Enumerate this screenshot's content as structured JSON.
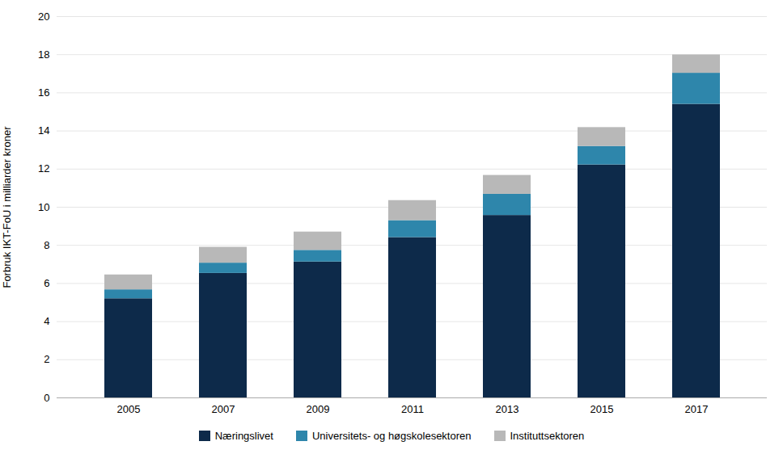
{
  "chart_data": {
    "type": "bar",
    "stacked": true,
    "categories": [
      "2005",
      "2007",
      "2009",
      "2011",
      "2013",
      "2015",
      "2017"
    ],
    "series": [
      {
        "name": "Næringslivet",
        "color": "#0d2a4a",
        "values": [
          5.2,
          6.53,
          7.13,
          8.41,
          9.57,
          12.22,
          15.4
        ]
      },
      {
        "name": "Universitets- og høgskolesektoren",
        "color": "#2e86ab",
        "values": [
          0.47,
          0.54,
          0.61,
          0.89,
          1.11,
          0.97,
          1.63
        ]
      },
      {
        "name": "Instituttsektoren",
        "color": "#b8b8b8",
        "values": [
          0.78,
          0.83,
          0.96,
          1.05,
          0.99,
          0.99,
          0.96
        ]
      }
    ],
    "ylabel": "Forbruk IKT-FoU i milliarder kroner",
    "ylim": [
      0,
      20
    ],
    "yticks": [
      0,
      2,
      4,
      6,
      8,
      10,
      12,
      14,
      16,
      18,
      20
    ],
    "grid": true,
    "legend": "bottom"
  }
}
